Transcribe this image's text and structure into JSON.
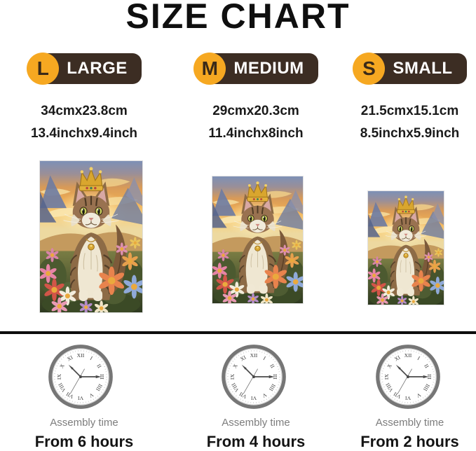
{
  "title": "SIZE CHART",
  "columns": [
    {
      "letter": "L",
      "label": "LARGE",
      "cm": "34cmx23.8cm",
      "inch": "13.4inchx9.4inch",
      "assembly_label": "Assembly time",
      "assembly_time": "From 6 hours"
    },
    {
      "letter": "M",
      "label": "MEDIUM",
      "cm": "29cmx20.3cm",
      "inch": "11.4inchx8inch",
      "assembly_label": "Assembly time",
      "assembly_time": "From 4 hours"
    },
    {
      "letter": "S",
      "label": "SMALL",
      "cm": "21.5cmx15.1cm",
      "inch": "8.5inchx5.9inch",
      "assembly_label": "Assembly time",
      "assembly_time": "From 2 hours"
    }
  ],
  "clock": {
    "numerals": [
      "XII",
      "I",
      "II",
      "III",
      "IIII",
      "V",
      "VI",
      "VII",
      "VIII",
      "IX",
      "X",
      "XI"
    ]
  },
  "artwork": {
    "alt": "Painting of a fluffy tabby cat wearing a gold crown sitting among colorful flowers at sunset"
  },
  "colors": {
    "badge_circle": "#F6A821",
    "badge_letter": "#3A2A18",
    "badge_pill": "#3C2D23",
    "divider": "#0D0D0D",
    "assembly_text": "#7D7D7D"
  }
}
